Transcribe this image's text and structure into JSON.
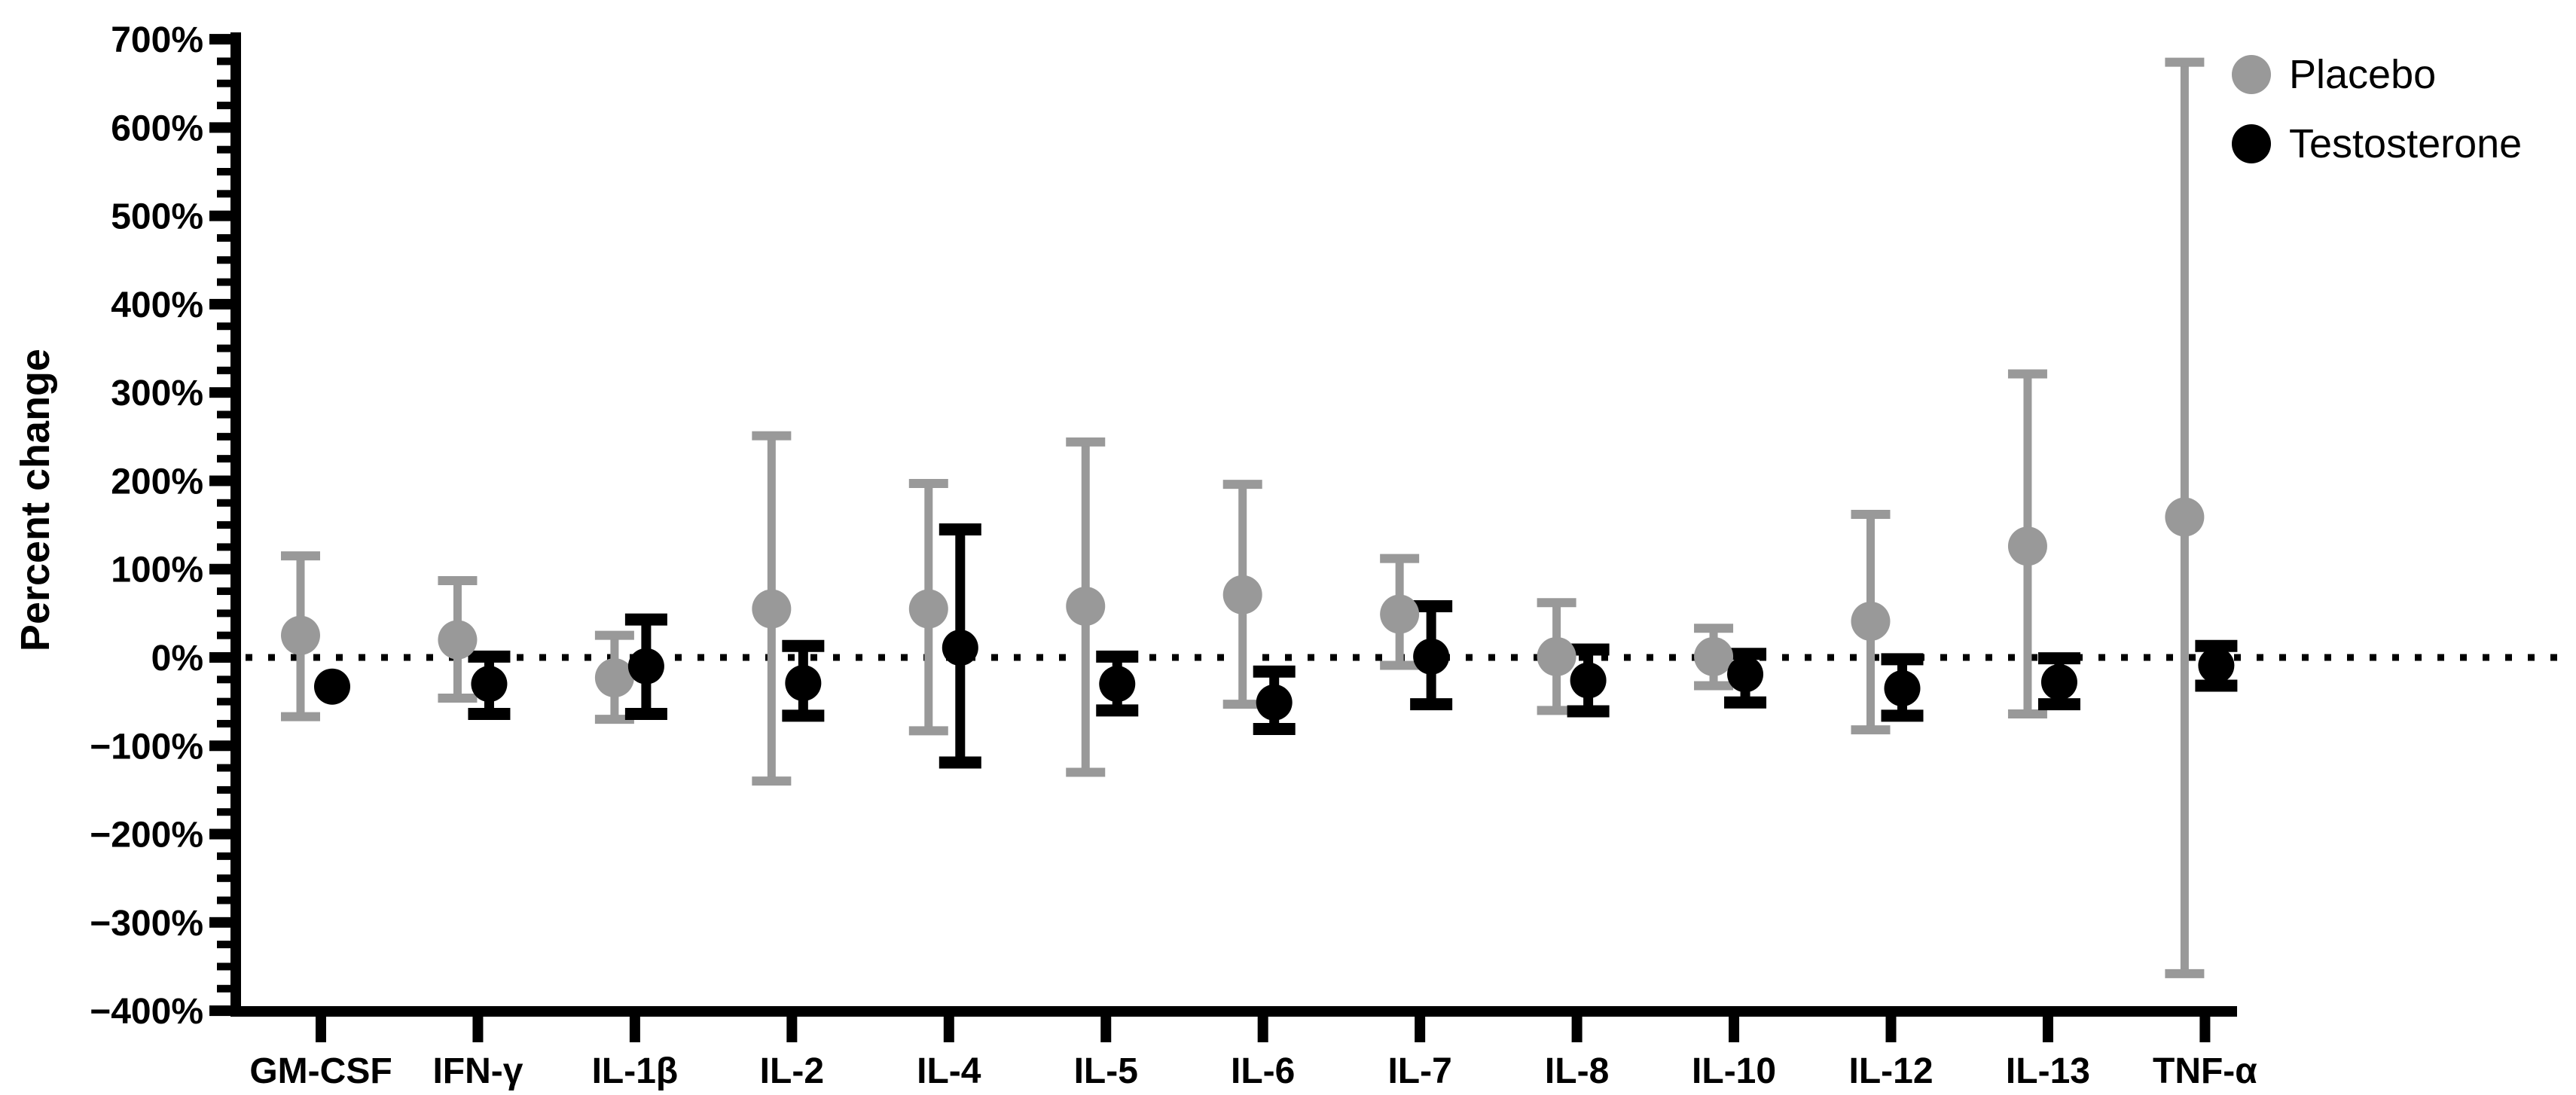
{
  "figure": {
    "ylabel": "Percent change",
    "legend_position": "top-right",
    "background": "#ffffff"
  },
  "chart_data": {
    "type": "scatter",
    "title": "",
    "xlabel": "",
    "ylabel": "Percent change",
    "grid": false,
    "baseline": {
      "value": 0,
      "style": "dotted",
      "color": "#000000"
    },
    "y_axis": {
      "min": -400,
      "max": 700,
      "major_step": 100,
      "minor_step": 25,
      "tick_labels": [
        "700%",
        "600%",
        "500%",
        "400%",
        "300%",
        "200%",
        "100%",
        "0%",
        "−100%",
        "−200%",
        "−300%",
        "−400%"
      ]
    },
    "categories": [
      "GM-CSF",
      "IFN-γ",
      "IL-1β",
      "IL-2",
      "IL-4",
      "IL-5",
      "IL-6",
      "IL-7",
      "IL-8",
      "IL-10",
      "IL-12",
      "IL-13",
      "TNF-α"
    ],
    "legend_entries": [
      "Placebo",
      "Testosterone"
    ],
    "series": [
      {
        "name": "Placebo",
        "color": "#999999",
        "values": [
          25,
          20,
          -23,
          55,
          55,
          58,
          71,
          49,
          1,
          1,
          41,
          126,
          159
        ],
        "ci_low": [
          -67,
          -46,
          -70,
          -140,
          -83,
          -130,
          -53,
          -9,
          -60,
          -32,
          -82,
          -64,
          -358
        ],
        "ci_high": [
          115,
          87,
          25,
          251,
          197,
          244,
          196,
          112,
          62,
          33,
          162,
          321,
          674
        ]
      },
      {
        "name": "Testosterone",
        "color": "#000000",
        "values": [
          -33,
          -30,
          -10,
          -29,
          11,
          -30,
          -51,
          1,
          -26,
          -19,
          -35,
          -28,
          -9
        ],
        "ci_low": [
          null,
          -64,
          -64,
          -66,
          -119,
          -60,
          -81,
          -53,
          -61,
          -51,
          -66,
          -53,
          -32
        ],
        "ci_high": [
          null,
          1,
          43,
          13,
          145,
          1,
          -16,
          58,
          9,
          4,
          -2,
          -1,
          13
        ]
      }
    ]
  }
}
